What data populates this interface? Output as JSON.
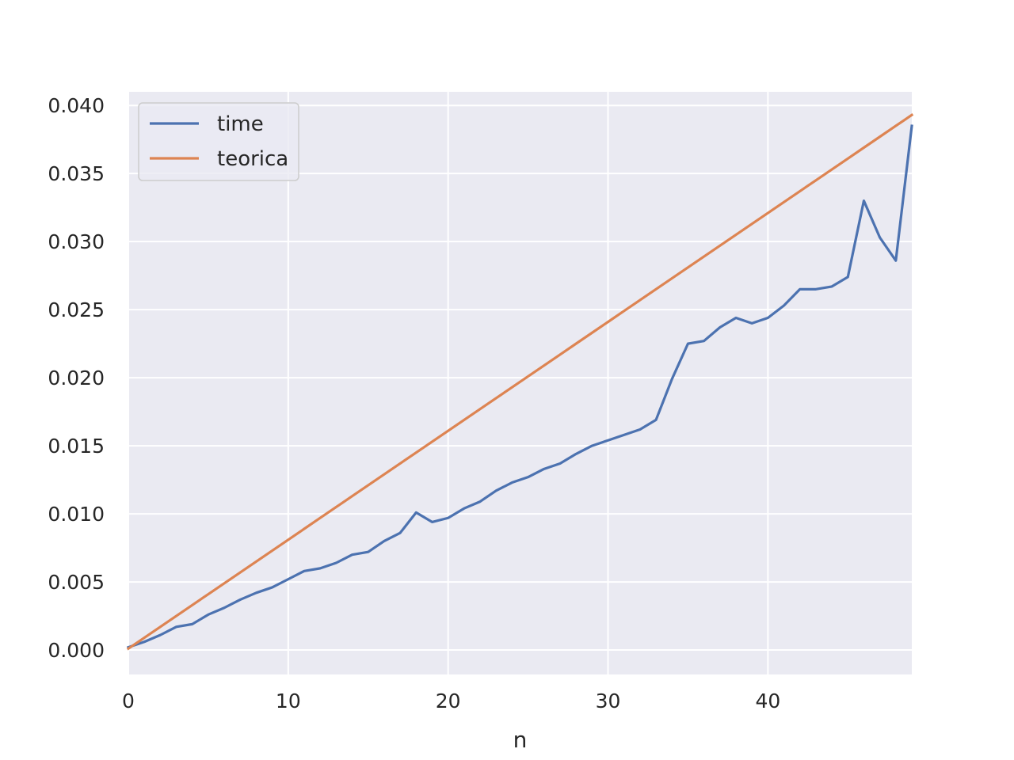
{
  "chart_data": {
    "type": "line",
    "title": "",
    "xlabel": "n",
    "ylabel": "",
    "xlim": [
      0,
      49
    ],
    "ylim": [
      -0.0018,
      0.041
    ],
    "xticks": [
      0,
      10,
      20,
      30,
      40
    ],
    "xtick_labels": [
      "0",
      "10",
      "20",
      "30",
      "40"
    ],
    "yticks": [
      0.0,
      0.005,
      0.01,
      0.015,
      0.02,
      0.025,
      0.03,
      0.035,
      0.04
    ],
    "ytick_labels": [
      "0.000",
      "0.005",
      "0.010",
      "0.015",
      "0.020",
      "0.025",
      "0.030",
      "0.035",
      "0.040"
    ],
    "grid": true,
    "legend": "top-left",
    "x": [
      0,
      1,
      2,
      3,
      4,
      5,
      6,
      7,
      8,
      9,
      10,
      11,
      12,
      13,
      14,
      15,
      16,
      17,
      18,
      19,
      20,
      21,
      22,
      23,
      24,
      25,
      26,
      27,
      28,
      29,
      30,
      31,
      32,
      33,
      34,
      35,
      36,
      37,
      38,
      39,
      40,
      41,
      42,
      43,
      44,
      45,
      46,
      47,
      48,
      49
    ],
    "series": [
      {
        "name": "time",
        "color": "#4c72b0",
        "values": [
          0.0002,
          0.0006,
          0.0011,
          0.0017,
          0.0019,
          0.0026,
          0.0031,
          0.0037,
          0.0042,
          0.0046,
          0.0052,
          0.0058,
          0.006,
          0.0064,
          0.007,
          0.0072,
          0.008,
          0.0086,
          0.0101,
          0.0094,
          0.0097,
          0.0104,
          0.0109,
          0.0117,
          0.0123,
          0.0127,
          0.0133,
          0.0137,
          0.0144,
          0.015,
          0.0154,
          0.0158,
          0.0162,
          0.0169,
          0.0199,
          0.0225,
          0.0227,
          0.0237,
          0.0244,
          0.024,
          0.0244,
          0.0253,
          0.0265,
          0.0265,
          0.0267,
          0.0274,
          0.033,
          0.0303,
          0.0286,
          0.0385
        ]
      },
      {
        "name": "teorica",
        "color": "#dd8452",
        "values": [
          0.0001,
          0.0009,
          0.0017,
          0.0025,
          0.0033,
          0.0041,
          0.0049,
          0.0057,
          0.0065,
          0.0073,
          0.0081,
          0.0089,
          0.0097,
          0.0105,
          0.0113,
          0.0121,
          0.0129,
          0.0137,
          0.0145,
          0.0153,
          0.0161,
          0.0169,
          0.0177,
          0.0185,
          0.0193,
          0.0201,
          0.0209,
          0.0217,
          0.0225,
          0.0233,
          0.0241,
          0.0249,
          0.0257,
          0.0265,
          0.0273,
          0.0281,
          0.0289,
          0.0297,
          0.0305,
          0.0313,
          0.0321,
          0.0329,
          0.0337,
          0.0345,
          0.0353,
          0.0361,
          0.0369,
          0.0377,
          0.0385,
          0.0393
        ]
      }
    ],
    "colors": {
      "plot_background": "#eaeaf2",
      "grid": "#ffffff",
      "text": "#262626"
    }
  }
}
